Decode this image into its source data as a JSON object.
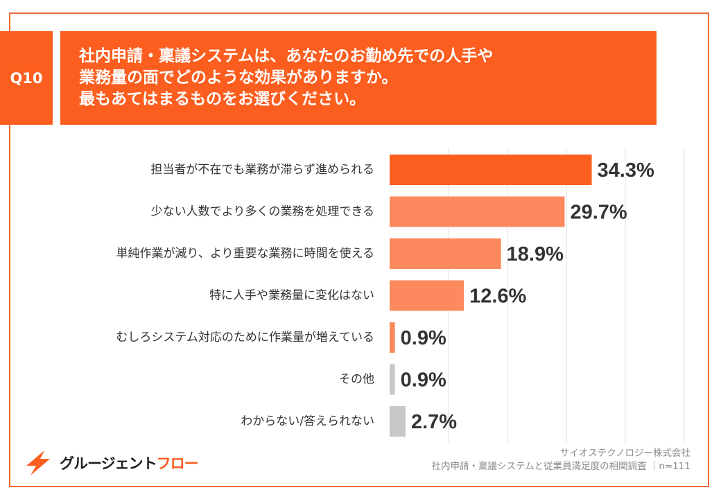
{
  "question": {
    "number": "Q10",
    "lines": [
      "社内申請・稟議システムは、あなたのお勤め先での人手や",
      "業務量の面でどのような効果がありますか。",
      "最もあてはまるものをお選びください。"
    ]
  },
  "chart_data": {
    "type": "bar",
    "orientation": "horizontal",
    "categories": [
      "担当者が不在でも業務が滞らず進められる",
      "少ない人数でより多くの業務を処理できる",
      "単純作業が減り、より重要な業務に時間を使える",
      "特に人手や業務量に変化はない",
      "むしろシステム対応のために作業量が増えている",
      "その他",
      "わからない/答えられない"
    ],
    "values": [
      34.3,
      29.7,
      18.9,
      12.6,
      0.9,
      0.9,
      2.7
    ],
    "value_labels": [
      "34.3%",
      "29.7%",
      "18.9%",
      "12.6%",
      "0.9%",
      "0.9%",
      "2.7%"
    ],
    "colors": [
      "#fb5e1f",
      "#fd8a5e",
      "#fd8a5e",
      "#fd8a5e",
      "#fd8a5e",
      "#c8c8c8",
      "#c8c8c8"
    ],
    "xlim": [
      0,
      50
    ],
    "grid": true
  },
  "colors": {
    "accent": "#fb5e1f",
    "border": "#f06a35",
    "light_bar": "#fd8a5e",
    "gray_bar": "#c8c8c8"
  },
  "logo": {
    "icon": "lightning-logo-icon",
    "text_dark": "グルージェント",
    "text_accent": "フロー"
  },
  "source": {
    "company": "サイオステクノロジー株式会社",
    "survey": "社内申請・稟議システムと従業員満足度の相関調査 ｜n=111"
  }
}
